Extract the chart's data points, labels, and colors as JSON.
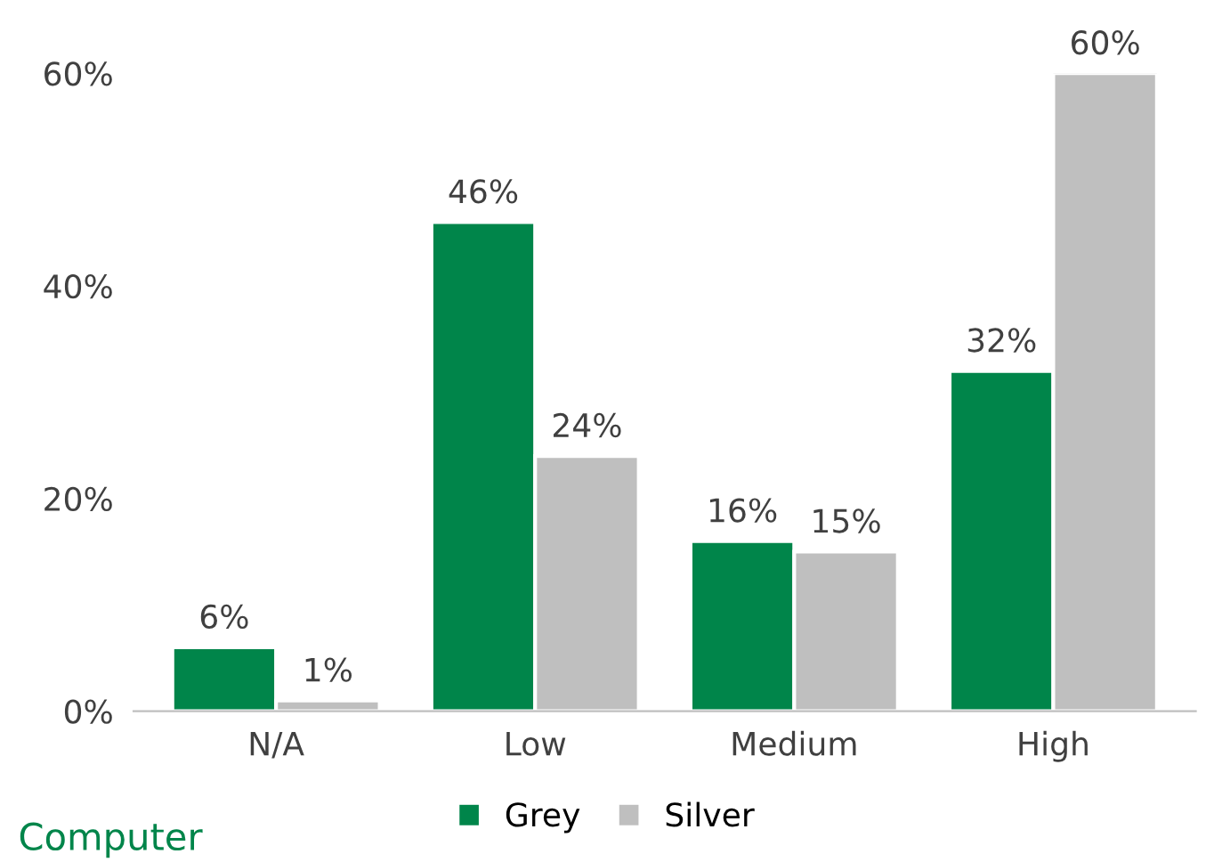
{
  "chart_data": {
    "type": "bar",
    "categories": [
      "N/A",
      "Low",
      "Medium",
      "High"
    ],
    "series": [
      {
        "name": "Grey",
        "color": "#00854a",
        "values": [
          6,
          46,
          16,
          32
        ],
        "value_labels": [
          "6%",
          "46%",
          "16%",
          "32%"
        ]
      },
      {
        "name": "Silver",
        "color": "#bfbfbf",
        "values": [
          1,
          24,
          15,
          60
        ],
        "value_labels": [
          "1%",
          "24%",
          "15%",
          "60%"
        ]
      }
    ],
    "ylim": [
      0,
      60
    ],
    "yticks": [
      {
        "value": 0,
        "label": "0%"
      },
      {
        "value": 20,
        "label": "20%"
      },
      {
        "value": 40,
        "label": "40%"
      },
      {
        "value": 60,
        "label": "60%"
      }
    ],
    "grid": false,
    "legend": "bottom",
    "annotations": [
      "Computer"
    ]
  }
}
